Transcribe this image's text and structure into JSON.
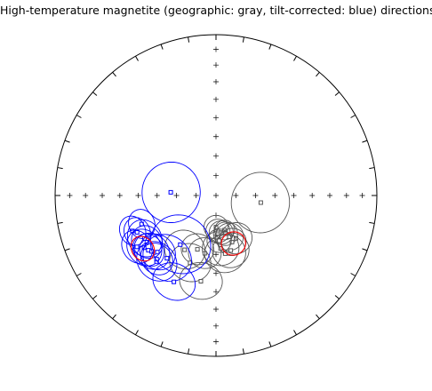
{
  "chart_data": {
    "type": "scatter",
    "projection": "equal-area stereonet",
    "title": "High-temperature magnetite (geographic: gray, tilt-corrected: blue) directions",
    "grid": false,
    "colors": {
      "geographic": "#555555",
      "tilt_corrected": "#0000ff",
      "mean": "#ff0000",
      "primitive": "#000000"
    },
    "series": [
      {
        "key": "geographic",
        "marker": "square",
        "values": [
          {
            "dec": 99,
            "inc": 67,
            "a95": 15
          },
          {
            "dec": 180,
            "inc": 74,
            "a95": 6
          },
          {
            "dec": 177,
            "inc": 72,
            "a95": 6
          },
          {
            "dec": 172,
            "inc": 71,
            "a95": 6
          },
          {
            "dec": 166,
            "inc": 72,
            "a95": 5
          },
          {
            "dec": 166,
            "inc": 70,
            "a95": 6
          },
          {
            "dec": 162,
            "inc": 68,
            "a95": 7
          },
          {
            "dec": 161,
            "inc": 65,
            "a95": 7
          },
          {
            "dec": 155,
            "inc": 66,
            "a95": 8
          },
          {
            "dec": 176,
            "inc": 67,
            "a95": 6
          },
          {
            "dec": 165,
            "inc": 61,
            "a95": 9
          },
          {
            "dec": 175,
            "inc": 63,
            "a95": 9
          },
          {
            "dec": 171,
            "inc": 60,
            "a95": 10
          },
          {
            "dec": 199,
            "inc": 61,
            "a95": 8
          },
          {
            "dec": 191,
            "inc": 60,
            "a95": 8
          },
          {
            "dec": 210,
            "inc": 58,
            "a95": 10
          },
          {
            "dec": 201,
            "inc": 53,
            "a95": 10
          },
          {
            "dec": 190,
            "inc": 45,
            "a95": 10
          }
        ]
      },
      {
        "key": "tilt_corrected",
        "marker": "square",
        "values": [
          {
            "dec": 274,
            "inc": 67,
            "a95": 15
          },
          {
            "dec": 249,
            "inc": 49,
            "a95": 7
          },
          {
            "dec": 245,
            "inc": 45,
            "a95": 7
          },
          {
            "dec": 247,
            "inc": 43,
            "a95": 7
          },
          {
            "dec": 239,
            "inc": 47,
            "a95": 9
          },
          {
            "dec": 236,
            "inc": 47,
            "a95": 8
          },
          {
            "dec": 234,
            "inc": 44,
            "a95": 9
          },
          {
            "dec": 237,
            "inc": 41,
            "a95": 8
          },
          {
            "dec": 231,
            "inc": 45,
            "a95": 8
          },
          {
            "dec": 226,
            "inc": 48,
            "a95": 9
          },
          {
            "dec": 229,
            "inc": 46,
            "a95": 9
          },
          {
            "dec": 222,
            "inc": 44,
            "a95": 10
          },
          {
            "dec": 223,
            "inc": 45,
            "a95": 8
          },
          {
            "dec": 218,
            "inc": 49,
            "a95": 12
          },
          {
            "dec": 206,
            "inc": 40,
            "a95": 10
          },
          {
            "dec": 216,
            "inc": 59,
            "a95": 15
          }
        ]
      },
      {
        "key": "mean",
        "marker": "none",
        "values": [
          {
            "dec": 160,
            "inc": 64,
            "a95": 6
          },
          {
            "dec": 234,
            "inc": 43,
            "a95": 6
          }
        ]
      }
    ]
  }
}
